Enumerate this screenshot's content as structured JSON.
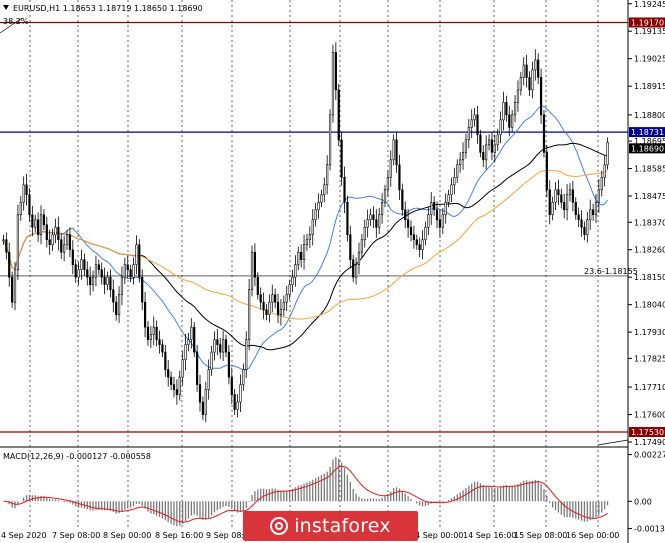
{
  "header": {
    "symbol_info": "EURUSD,H1  1.18653 1.18719 1.18650 1.18690",
    "fib_tag": "38.2%"
  },
  "price_axis": {
    "ticks": [
      "1.19245",
      "1.19135",
      "1.19025",
      "1.18915",
      "1.18800",
      "1.18695",
      "1.18585",
      "1.18475",
      "1.18370",
      "1.18260",
      "1.18150",
      "1.18040",
      "1.17930",
      "1.17825",
      "1.17710",
      "1.17600",
      "1.17490"
    ],
    "min": 1.1747,
    "max": 1.1926
  },
  "levels": [
    {
      "name": "resistance-high",
      "label": "1.19170",
      "value": 1.1917,
      "color": "#8b0000"
    },
    {
      "name": "resistance-blue",
      "label": "1.18731",
      "value": 1.18731,
      "color": "#00008b"
    },
    {
      "name": "support-low",
      "label": "1.17530",
      "value": 1.1753,
      "color": "#8b0000"
    }
  ],
  "current_price": {
    "label": "1.18690",
    "value": 1.1869
  },
  "fib_level": {
    "label": "23.6-1.18155",
    "value": 1.18155
  },
  "time_axis": {
    "labels": [
      "4 Sep 2020",
      "7 Sep 08:00",
      "8 Sep 00:00",
      "8 Sep 16:00",
      "9 Sep 08:00",
      "10 Sep 00:00",
      "10 Sep 16:00",
      "11 Sep 08:00",
      "14 Sep 00:00",
      "14 Sep 16:00",
      "15 Sep 08:00",
      "16 Sep 00:00"
    ]
  },
  "macd": {
    "label": "MACD(12,26,9) -0.000127 -0.000558",
    "ticks": [
      "0.002273",
      "0.00",
      "-0.001324"
    ],
    "min": -0.0014,
    "max": 0.0024
  },
  "chart_data": {
    "type": "candlestick",
    "symbol": "EURUSD",
    "timeframe": "H1",
    "closes": [
      1.183,
      1.1825,
      1.1815,
      1.1805,
      1.1818,
      1.184,
      1.1845,
      1.1852,
      1.1848,
      1.184,
      1.1835,
      1.1838,
      1.1832,
      1.184,
      1.1836,
      1.183,
      1.1828,
      1.1832,
      1.1835,
      1.183,
      1.1825,
      1.1828,
      1.1832,
      1.1826,
      1.182,
      1.1815,
      1.1818,
      1.1822,
      1.1818,
      1.1815,
      1.1812,
      1.1815,
      1.182,
      1.1818,
      1.1815,
      1.1812,
      1.1815,
      1.181,
      1.1805,
      1.18,
      1.1808,
      1.1815,
      1.182,
      1.1818,
      1.1815,
      1.182,
      1.1828,
      1.1815,
      1.1805,
      1.1795,
      1.179,
      1.1792,
      1.1795,
      1.179,
      1.1788,
      1.1785,
      1.1778,
      1.1775,
      1.1772,
      1.177,
      1.1768,
      1.1775,
      1.1782,
      1.1788,
      1.179,
      1.1795,
      1.1785,
      1.1772,
      1.1765,
      1.176,
      1.177,
      1.1778,
      1.1785,
      1.179,
      1.1788,
      1.1785,
      1.179,
      1.1785,
      1.1775,
      1.1768,
      1.1762,
      1.1765,
      1.1772,
      1.1778,
      1.179,
      1.181,
      1.1825,
      1.1815,
      1.1808,
      1.1805,
      1.1802,
      1.18,
      1.1805,
      1.1808,
      1.1805,
      1.18,
      1.1802,
      1.1805,
      1.1808,
      1.1812,
      1.1815,
      1.182,
      1.1825,
      1.1822,
      1.1828,
      1.183,
      1.1832,
      1.1838,
      1.1842,
      1.1845,
      1.1848,
      1.1852,
      1.186,
      1.188,
      1.1905,
      1.189,
      1.187,
      1.1855,
      1.1845,
      1.1832,
      1.1822,
      1.1815,
      1.182,
      1.1825,
      1.183,
      1.1835,
      1.1838,
      1.184,
      1.1838,
      1.1835,
      1.184,
      1.1845,
      1.185,
      1.1855,
      1.1862,
      1.187,
      1.186,
      1.185,
      1.1842,
      1.1838,
      1.1835,
      1.1832,
      1.183,
      1.1828,
      1.1826,
      1.183,
      1.1835,
      1.184,
      1.1845,
      1.1842,
      1.1838,
      1.1835,
      1.184,
      1.1845,
      1.1848,
      1.1852,
      1.1855,
      1.186,
      1.1862,
      1.1865,
      1.187,
      1.1875,
      1.1878,
      1.188,
      1.1872,
      1.1865,
      1.1862,
      1.1868,
      1.187,
      1.1865,
      1.1868,
      1.1872,
      1.1878,
      1.1885,
      1.188,
      1.1875,
      1.188,
      1.1885,
      1.189,
      1.1895,
      1.19,
      1.1895,
      1.189,
      1.1898,
      1.1902,
      1.1895,
      1.188,
      1.1865,
      1.185,
      1.184,
      1.1845,
      1.185,
      1.1848,
      1.1845,
      1.1842,
      1.1848,
      1.185,
      1.1845,
      1.184,
      1.1838,
      1.1835,
      1.1832,
      1.1838,
      1.1842,
      1.184,
      1.1845,
      1.185,
      1.1855,
      1.186,
      1.1869
    ]
  }
}
